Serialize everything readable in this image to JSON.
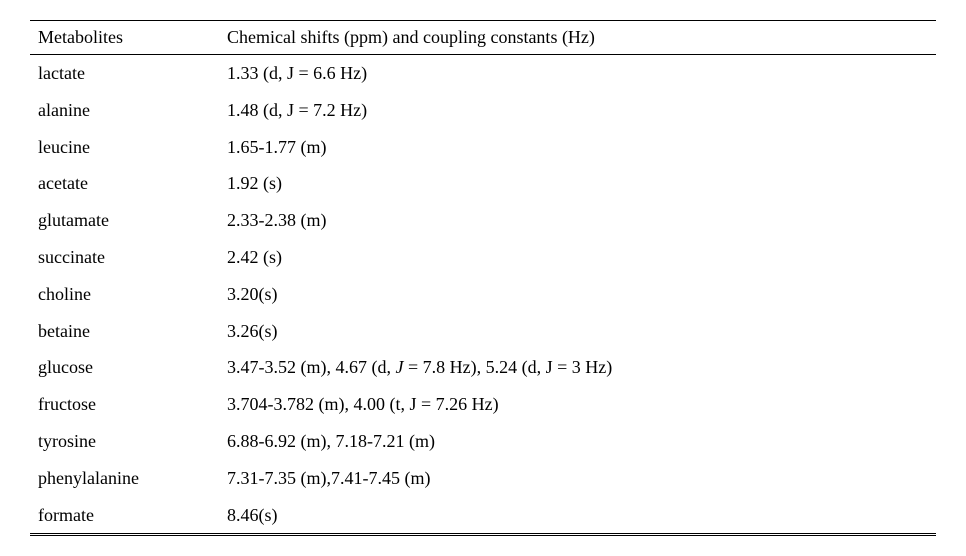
{
  "table": {
    "columns": [
      "Metabolites",
      "Chemical shifts (ppm) and coupling constants (Hz)"
    ],
    "rows": [
      {
        "metabolite": "lactate",
        "shifts": "1.33 (d, J = 6.6 Hz)"
      },
      {
        "metabolite": "alanine",
        "shifts": "1.48 (d, J = 7.2 Hz)"
      },
      {
        "metabolite": "leucine",
        "shifts": "1.65-1.77 (m)"
      },
      {
        "metabolite": "acetate",
        "shifts": "1.92 (s)"
      },
      {
        "metabolite": "glutamate",
        "shifts": "2.33-2.38 (m)"
      },
      {
        "metabolite": "succinate",
        "shifts": "2.42 (s)"
      },
      {
        "metabolite": "choline",
        "shifts": "3.20(s)"
      },
      {
        "metabolite": "betaine",
        "shifts": "3.26(s)"
      },
      {
        "metabolite": "glucose",
        "shifts_pre": "3.47-3.52 (m), 4.67 (d, ",
        "shifts_italic": "J",
        "shifts_post": " = 7.8  Hz), 5.24 (d, J = 3 Hz)"
      },
      {
        "metabolite": "fructose",
        "shifts": "3.704-3.782 (m),  4.00 (t, J = 7.26 Hz)"
      },
      {
        "metabolite": "tyrosine",
        "shifts": "6.88-6.92 (m), 7.18-7.21 (m)"
      },
      {
        "metabolite": "phenylalanine",
        "shifts": "7.31-7.35 (m),7.41-7.45 (m)"
      },
      {
        "metabolite": "formate",
        "shifts": "8.46(s)"
      }
    ],
    "col_widths": [
      "175px",
      "auto"
    ],
    "border_color": "#000000",
    "text_color": "#000000",
    "background_color": "#ffffff",
    "font_family": "Georgia, Times New Roman, serif",
    "font_size_pt": 14
  }
}
